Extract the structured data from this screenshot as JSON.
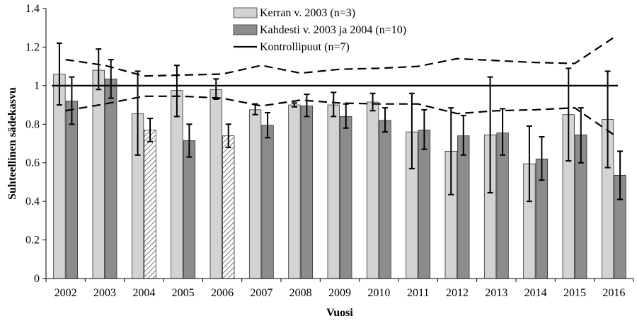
{
  "chart_data": {
    "type": "bar",
    "xlabel": "Vuosi",
    "ylabel": "Suhteellinen sädekasvu",
    "ylim": [
      0,
      1.4
    ],
    "yticks": [
      "0",
      "0.2",
      "0.4",
      "0.6",
      "0.8",
      "1",
      "1.2",
      "1.4"
    ],
    "categories": [
      "2002",
      "2003",
      "2004",
      "2005",
      "2006",
      "2007",
      "2008",
      "2009",
      "2010",
      "2011",
      "2012",
      "2013",
      "2014",
      "2015",
      "2016"
    ],
    "series": [
      {
        "name": "Kerran v. 2003 (n=3)",
        "color": "#d3d3d3",
        "values": [
          1.06,
          1.08,
          0.855,
          0.975,
          0.98,
          0.875,
          0.9,
          0.9,
          0.915,
          0.76,
          0.66,
          0.745,
          0.595,
          0.85,
          0.825
        ],
        "err_low": [
          0.9,
          0.98,
          0.64,
          0.84,
          0.93,
          0.85,
          0.89,
          0.84,
          0.87,
          0.57,
          0.435,
          0.445,
          0.4,
          0.61,
          0.575
        ],
        "err_high": [
          1.22,
          1.19,
          1.075,
          1.105,
          1.035,
          0.905,
          0.91,
          0.965,
          0.96,
          0.96,
          0.885,
          1.045,
          0.79,
          1.09,
          1.075
        ]
      },
      {
        "name": "Kahdesti v. 2003 ja 2004 (n=10)",
        "color": "#8c8c8c",
        "hatched_categories": [
          "2004",
          "2006"
        ],
        "values": [
          0.92,
          1.035,
          0.77,
          0.715,
          0.74,
          0.795,
          0.895,
          0.84,
          0.82,
          0.77,
          0.74,
          0.755,
          0.62,
          0.745,
          0.535
        ],
        "err_low": [
          0.8,
          0.935,
          0.71,
          0.63,
          0.68,
          0.73,
          0.84,
          0.78,
          0.76,
          0.67,
          0.64,
          0.64,
          0.51,
          0.6,
          0.41
        ],
        "err_high": [
          1.045,
          1.135,
          0.83,
          0.8,
          0.8,
          0.86,
          0.955,
          0.905,
          0.885,
          0.875,
          0.845,
          0.88,
          0.735,
          0.885,
          0.66
        ]
      }
    ],
    "reference_line": {
      "name": "Kontrollipuut (n=7)",
      "value": 1.0
    },
    "control_band_upper": [
      1.135,
      1.105,
      1.05,
      1.055,
      1.06,
      1.105,
      1.065,
      1.085,
      1.09,
      1.1,
      1.14,
      1.13,
      1.12,
      1.115,
      1.25
    ],
    "control_band_lower": [
      0.87,
      0.905,
      0.945,
      0.945,
      0.935,
      0.895,
      0.925,
      0.91,
      0.905,
      0.905,
      0.855,
      0.87,
      0.875,
      0.885,
      0.745
    ],
    "grid": false,
    "legend_position": "top-center"
  }
}
